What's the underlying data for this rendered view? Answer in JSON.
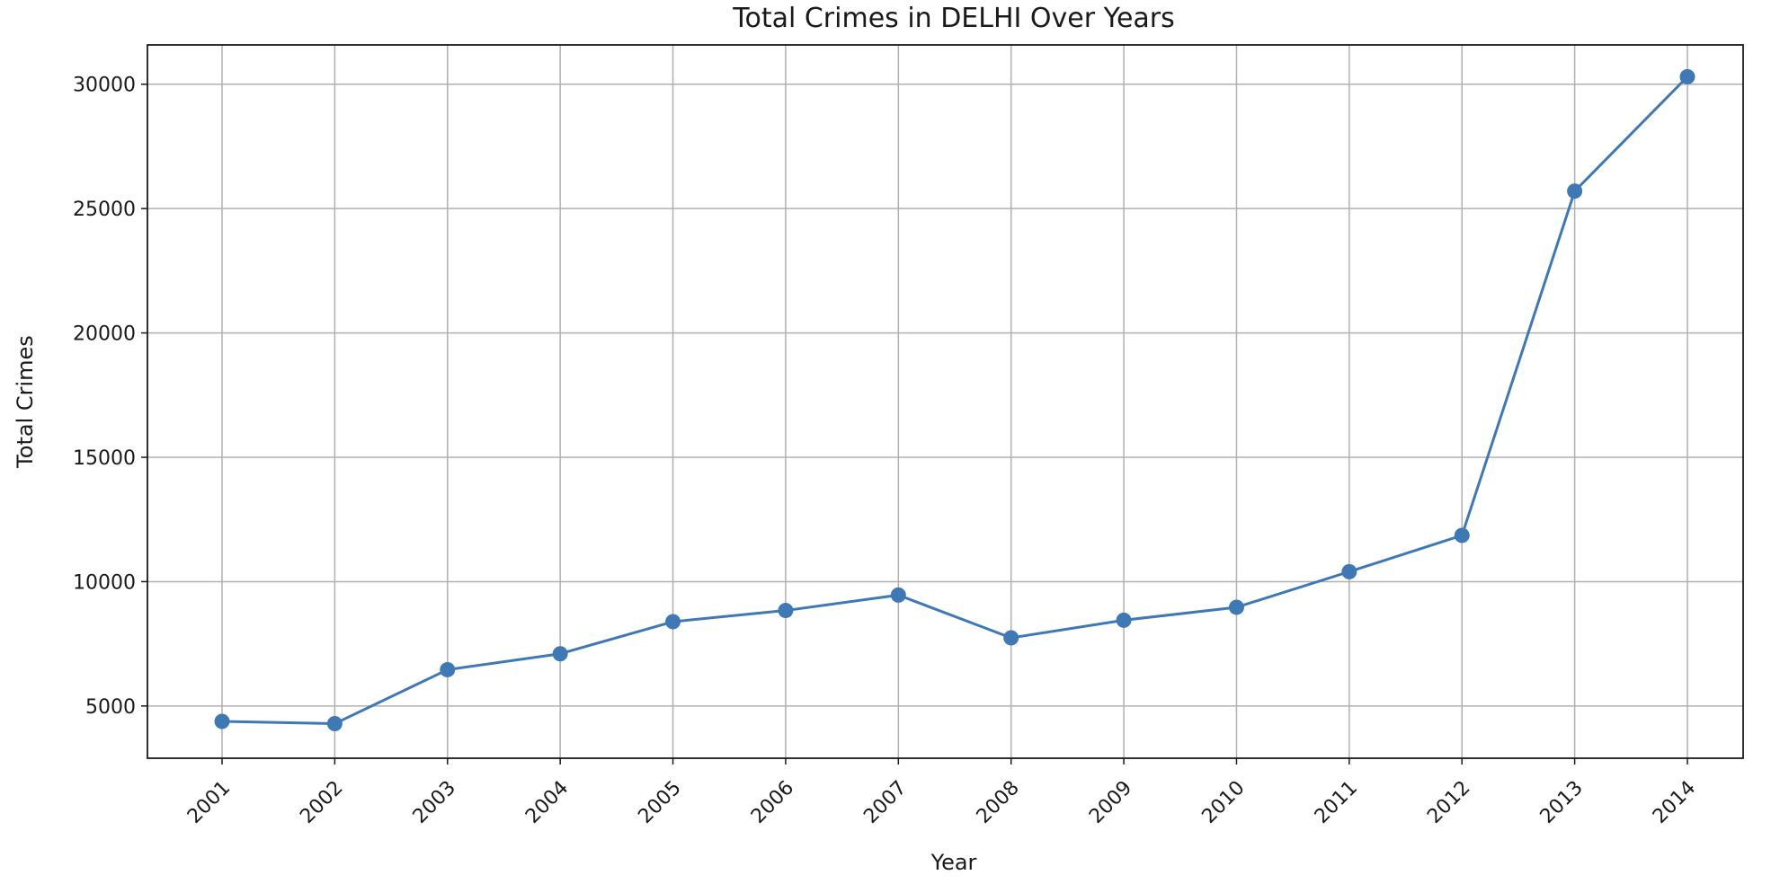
{
  "chart_data": {
    "type": "line",
    "title": "Total Crimes in DELHI Over Years",
    "xlabel": "Year",
    "ylabel": "Total Crimes",
    "x": [
      "2001",
      "2002",
      "2003",
      "2004",
      "2005",
      "2006",
      "2007",
      "2008",
      "2009",
      "2010",
      "2011",
      "2012",
      "2013",
      "2014"
    ],
    "series": [
      {
        "values": [
          4380,
          4290,
          6460,
          7100,
          8390,
          8840,
          9460,
          7740,
          8450,
          8970,
          10400,
          11860,
          25700,
          30300
        ],
        "color": "#3e78b5",
        "marker": "circle"
      }
    ],
    "yticks": [
      5000,
      10000,
      15000,
      20000,
      25000,
      30000
    ],
    "ylim": [
      2900,
      31580
    ],
    "grid": true,
    "legend": "none"
  }
}
